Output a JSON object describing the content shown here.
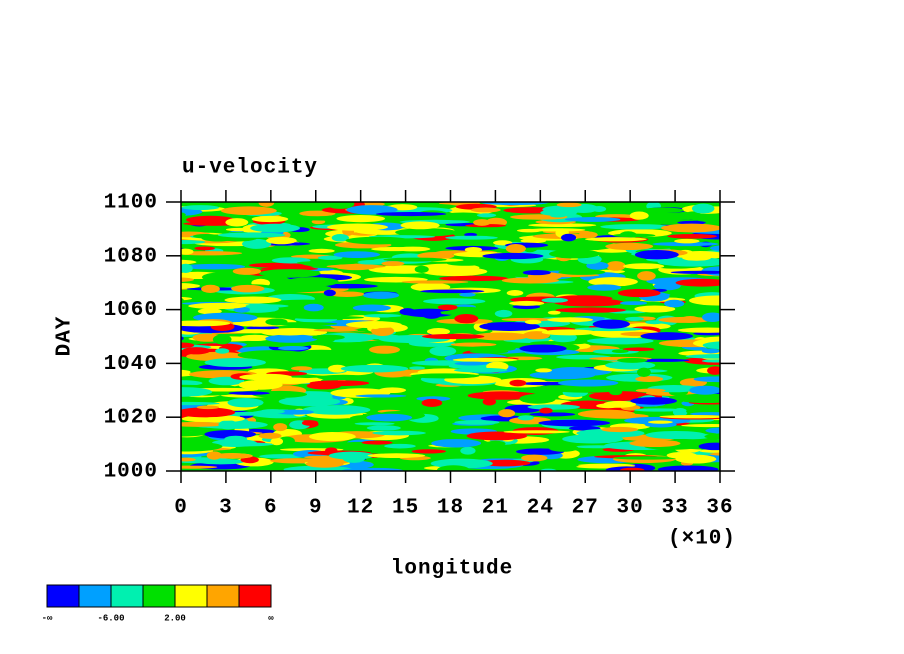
{
  "chart_data": {
    "type": "contour",
    "title": "u-velocity",
    "ylabel": "DAY",
    "xlabel": "longitude",
    "x_multiplier": "(×10)",
    "xlim": [
      0,
      36
    ],
    "xticks": [
      0,
      3,
      6,
      9,
      12,
      15,
      18,
      21,
      24,
      27,
      30,
      33,
      36
    ],
    "ylim": [
      1000,
      1100
    ],
    "yticks": [
      1000,
      1020,
      1040,
      1060,
      1080,
      1100
    ],
    "colorbar": {
      "colors": [
        "#0000ff",
        "#00a0ff",
        "#00f0b0",
        "#00e000",
        "#ffff00",
        "#ffa500",
        "#ff0000"
      ],
      "labels": [
        "-∞",
        null,
        "-6.00",
        null,
        "2.00",
        null,
        null,
        "∞"
      ]
    }
  }
}
